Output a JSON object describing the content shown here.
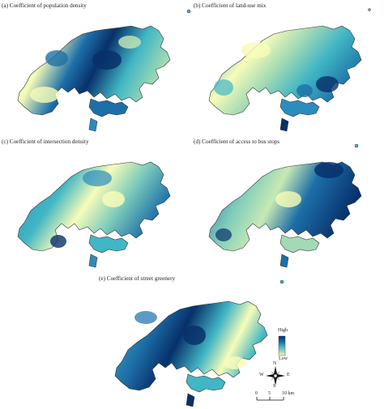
{
  "panels": [
    {
      "id": "a",
      "label": "(a) Coefficient of population density"
    },
    {
      "id": "b",
      "label": "(b) Coefficient of land-use mix"
    },
    {
      "id": "c",
      "label": "(c) Coefficient of intersection density"
    },
    {
      "id": "d",
      "label": "(d) Coefficient of access to bus stops"
    },
    {
      "id": "e",
      "label": "(e) Coefficient of street greenery"
    }
  ],
  "legend": {
    "high_label": "High",
    "low_label": "Low",
    "colors": [
      "#08306b",
      "#1d6fa8",
      "#41b6c4",
      "#a1dab4",
      "#f7fcb9"
    ]
  },
  "compass": {
    "n": "N",
    "e": "E",
    "s": "S",
    "w": "W"
  },
  "scale": {
    "ticks": [
      "0",
      "5",
      "10 km"
    ]
  }
}
